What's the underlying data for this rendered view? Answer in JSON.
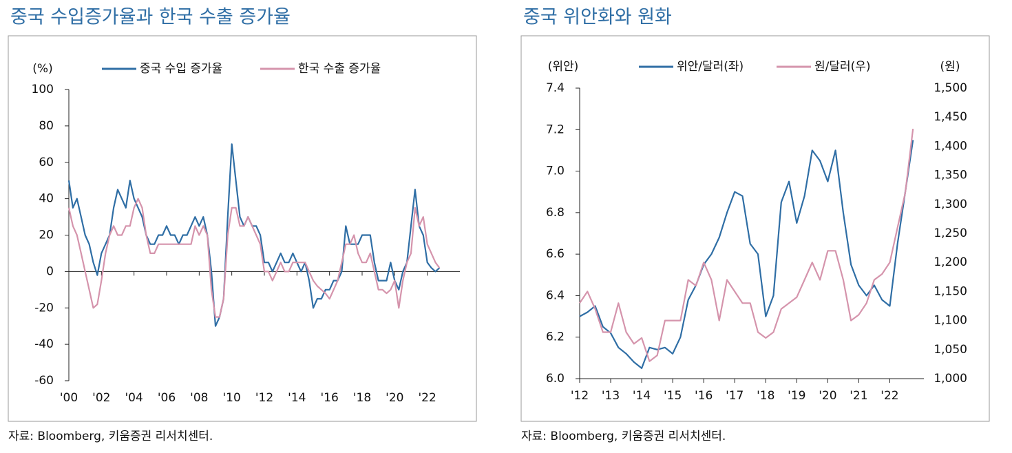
{
  "chart_data": [
    {
      "type": "line",
      "title": "중국 수입증가율과 한국 수출 증가율",
      "y_label": "(%)",
      "source": "자료: Bloomberg, 키움증권 리서치센터.",
      "xlim": [
        2000,
        2024
      ],
      "ylim": [
        -60,
        100
      ],
      "xticks": [
        {
          "value": 2000,
          "label": "'00"
        },
        {
          "value": 2002,
          "label": "'02"
        },
        {
          "value": 2004,
          "label": "'04"
        },
        {
          "value": 2006,
          "label": "'06"
        },
        {
          "value": 2008,
          "label": "'08"
        },
        {
          "value": 2010,
          "label": "'10"
        },
        {
          "value": 2012,
          "label": "'12"
        },
        {
          "value": 2014,
          "label": "'14"
        },
        {
          "value": 2016,
          "label": "'16"
        },
        {
          "value": 2018,
          "label": "'18"
        },
        {
          "value": 2020,
          "label": "'20"
        },
        {
          "value": 2022,
          "label": "'22"
        }
      ],
      "yticks": [
        -60,
        -40,
        -20,
        0,
        20,
        40,
        60,
        80,
        100
      ],
      "x": [
        2000,
        2000.25,
        2000.5,
        2000.75,
        2001,
        2001.25,
        2001.5,
        2001.75,
        2002,
        2002.25,
        2002.5,
        2002.75,
        2003,
        2003.25,
        2003.5,
        2003.75,
        2004,
        2004.25,
        2004.5,
        2004.75,
        2005,
        2005.25,
        2005.5,
        2005.75,
        2006,
        2006.25,
        2006.5,
        2006.75,
        2007,
        2007.25,
        2007.5,
        2007.75,
        2008,
        2008.25,
        2008.5,
        2008.75,
        2009,
        2009.25,
        2009.5,
        2009.75,
        2010,
        2010.25,
        2010.5,
        2010.75,
        2011,
        2011.25,
        2011.5,
        2011.75,
        2012,
        2012.25,
        2012.5,
        2012.75,
        2013,
        2013.25,
        2013.5,
        2013.75,
        2014,
        2014.25,
        2014.5,
        2014.75,
        2015,
        2015.25,
        2015.5,
        2015.75,
        2016,
        2016.25,
        2016.5,
        2016.75,
        2017,
        2017.25,
        2017.5,
        2017.75,
        2018,
        2018.25,
        2018.5,
        2018.75,
        2019,
        2019.25,
        2019.5,
        2019.75,
        2020,
        2020.25,
        2020.5,
        2020.75,
        2021,
        2021.25,
        2021.5,
        2021.75,
        2022,
        2022.25,
        2022.5,
        2022.75
      ],
      "series": [
        {
          "name": "중국 수입 증가율",
          "color": "#2f6ea5",
          "values": [
            50,
            35,
            40,
            30,
            20,
            15,
            5,
            -2,
            10,
            15,
            20,
            35,
            45,
            40,
            35,
            50,
            40,
            35,
            30,
            20,
            15,
            15,
            20,
            20,
            25,
            20,
            20,
            15,
            20,
            20,
            25,
            30,
            25,
            30,
            20,
            0,
            -30,
            -25,
            -15,
            30,
            70,
            50,
            30,
            25,
            30,
            25,
            25,
            20,
            5,
            5,
            0,
            5,
            10,
            5,
            5,
            10,
            5,
            0,
            5,
            -5,
            -20,
            -15,
            -15,
            -10,
            -10,
            -5,
            -5,
            0,
            25,
            15,
            15,
            15,
            20,
            20,
            20,
            5,
            -5,
            -5,
            -5,
            5,
            -5,
            -10,
            0,
            5,
            25,
            45,
            25,
            20,
            5,
            2,
            0,
            2
          ]
        },
        {
          "name": "한국 수출 증가율",
          "color": "#d594ac",
          "values": [
            35,
            25,
            20,
            10,
            0,
            -10,
            -20,
            -18,
            -5,
            10,
            20,
            25,
            20,
            20,
            25,
            25,
            35,
            40,
            35,
            20,
            10,
            10,
            15,
            15,
            15,
            15,
            15,
            15,
            15,
            15,
            15,
            25,
            20,
            25,
            20,
            -10,
            -25,
            -25,
            -15,
            20,
            35,
            35,
            25,
            25,
            30,
            25,
            20,
            15,
            0,
            0,
            -5,
            0,
            5,
            0,
            0,
            5,
            5,
            5,
            5,
            0,
            -5,
            -8,
            -10,
            -12,
            -15,
            -10,
            -5,
            5,
            15,
            15,
            20,
            10,
            5,
            5,
            10,
            0,
            -10,
            -10,
            -12,
            -10,
            -5,
            -20,
            -5,
            5,
            10,
            35,
            25,
            30,
            15,
            10,
            5,
            2
          ]
        }
      ]
    },
    {
      "type": "line",
      "title": "중국 위안화와 원화",
      "y_label": "(위안)",
      "y2_label": "(원)",
      "source": "자료: Bloomberg, 키움증권 리서치센터.",
      "xlim": [
        2012,
        2023.1
      ],
      "ylim": [
        6.0,
        7.4
      ],
      "y2lim": [
        1000,
        1500
      ],
      "xticks": [
        {
          "value": 2012,
          "label": "'12"
        },
        {
          "value": 2013,
          "label": "'13"
        },
        {
          "value": 2014,
          "label": "'14"
        },
        {
          "value": 2015,
          "label": "'15"
        },
        {
          "value": 2016,
          "label": "'16"
        },
        {
          "value": 2017,
          "label": "'17"
        },
        {
          "value": 2018,
          "label": "'18"
        },
        {
          "value": 2019,
          "label": "'19"
        },
        {
          "value": 2020,
          "label": "'20"
        },
        {
          "value": 2021,
          "label": "'21"
        },
        {
          "value": 2022,
          "label": "'22"
        }
      ],
      "yticks": [
        {
          "value": 6.0,
          "label": "6.0"
        },
        6.2,
        6.4,
        6.6,
        6.8,
        {
          "value": 7.0,
          "label": "7.0"
        },
        7.2,
        7.4
      ],
      "y2ticks": [
        {
          "value": 1000,
          "label": "1,000"
        },
        {
          "value": 1050,
          "label": "1,050"
        },
        {
          "value": 1100,
          "label": "1,100"
        },
        {
          "value": 1150,
          "label": "1,150"
        },
        {
          "value": 1200,
          "label": "1,200"
        },
        {
          "value": 1250,
          "label": "1,250"
        },
        {
          "value": 1300,
          "label": "1,300"
        },
        {
          "value": 1350,
          "label": "1,350"
        },
        {
          "value": 1400,
          "label": "1,400"
        },
        {
          "value": 1450,
          "label": "1,450"
        },
        {
          "value": 1500,
          "label": "1,500"
        }
      ],
      "x": [
        2012,
        2012.25,
        2012.5,
        2012.75,
        2013,
        2013.25,
        2013.5,
        2013.75,
        2014,
        2014.25,
        2014.5,
        2014.75,
        2015,
        2015.25,
        2015.5,
        2015.75,
        2016,
        2016.25,
        2016.5,
        2016.75,
        2017,
        2017.25,
        2017.5,
        2017.75,
        2018,
        2018.25,
        2018.5,
        2018.75,
        2019,
        2019.25,
        2019.5,
        2019.75,
        2020,
        2020.25,
        2020.5,
        2020.75,
        2021,
        2021.25,
        2021.5,
        2021.75,
        2022,
        2022.25,
        2022.5,
        2022.75
      ],
      "series": [
        {
          "name": "위안/달러(좌)",
          "color": "#2f6ea5",
          "values": [
            6.3,
            6.32,
            6.35,
            6.25,
            6.22,
            6.15,
            6.12,
            6.08,
            6.05,
            6.15,
            6.14,
            6.15,
            6.12,
            6.2,
            6.38,
            6.45,
            6.55,
            6.6,
            6.68,
            6.8,
            6.9,
            6.88,
            6.65,
            6.6,
            6.3,
            6.4,
            6.85,
            6.95,
            6.75,
            6.88,
            7.1,
            7.05,
            6.95,
            7.1,
            6.8,
            6.55,
            6.45,
            6.4,
            6.45,
            6.38,
            6.35,
            6.65,
            6.9,
            7.15
          ]
        },
        {
          "name": "원/달러(우)",
          "color": "#d594ac",
          "axis": "y2",
          "values": [
            1130,
            1150,
            1120,
            1080,
            1080,
            1130,
            1080,
            1060,
            1070,
            1030,
            1040,
            1100,
            1100,
            1100,
            1170,
            1160,
            1200,
            1170,
            1100,
            1170,
            1150,
            1130,
            1130,
            1080,
            1070,
            1080,
            1120,
            1130,
            1140,
            1170,
            1200,
            1170,
            1220,
            1220,
            1170,
            1100,
            1110,
            1130,
            1170,
            1180,
            1200,
            1260,
            1320,
            1430
          ]
        }
      ]
    }
  ]
}
